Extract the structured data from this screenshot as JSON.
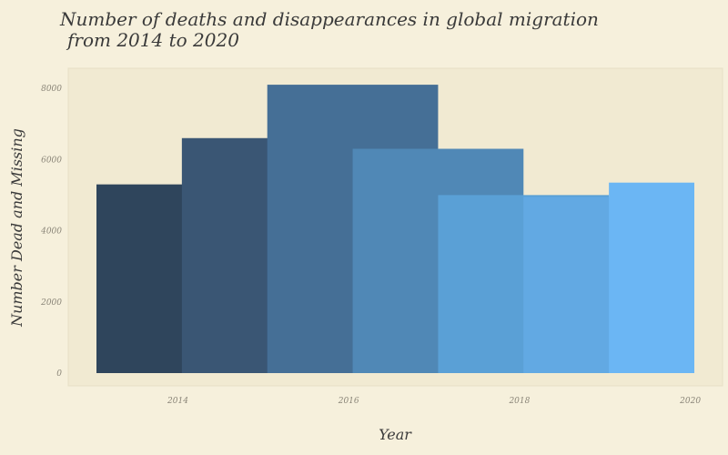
{
  "chart_data": {
    "type": "bar",
    "title_lines": [
      "Number of deaths and disappearances in global migration",
      "from 2014 to 2020"
    ],
    "xlabel": "Year",
    "ylabel": "Number Dead and Missing",
    "x_ticks": [
      "2014",
      "2016",
      "2018",
      "2020"
    ],
    "y_ticks": [
      "0",
      "2000",
      "4000",
      "6000",
      "8000"
    ],
    "ylim": [
      0,
      8000
    ],
    "xlim": [
      2013.1,
      2020.1
    ],
    "categories": [
      "2014",
      "2015",
      "2016",
      "2017",
      "2018",
      "2019",
      "2020"
    ],
    "values": [
      5300,
      6600,
      8100,
      6300,
      5000,
      4950,
      5350
    ],
    "colors": [
      "#2f455c",
      "#3a5674",
      "#456f96",
      "#5088b6",
      "#5aa0d6",
      "#62a9e3",
      "#6bb6f4"
    ],
    "grid": false,
    "legend": "none"
  }
}
